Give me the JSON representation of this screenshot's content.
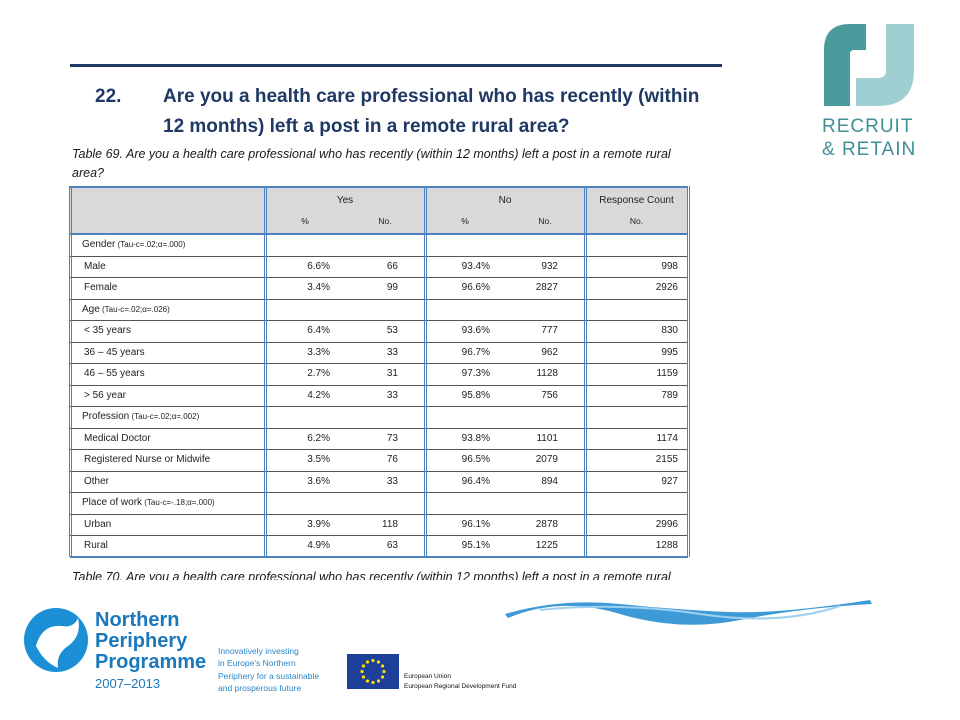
{
  "header": {
    "number": "22.",
    "question_line1": "Are you a health care professional who has recently (within",
    "question_line2": "12 months) left a post in a remote rural area?"
  },
  "logo": {
    "line1": "RECRUIT",
    "line2": "& RETAIN"
  },
  "table": {
    "caption_line1": "Table 69. Are you a health care professional who has recently (within 12 months) left a post in a remote rural",
    "caption_line2": "area?",
    "groups": [
      "Yes",
      "No",
      "Response Count"
    ],
    "subheaders": [
      "%",
      "No.",
      "%",
      "No.",
      "No."
    ],
    "sections": [
      {
        "label": "Gender",
        "stat": "(Tau-c=.02;α=.000)",
        "rows": [
          [
            "Male",
            "6.6%",
            "66",
            "93.4%",
            "932",
            "998"
          ],
          [
            "Female",
            "3.4%",
            "99",
            "96.6%",
            "2827",
            "2926"
          ]
        ]
      },
      {
        "label": "Age",
        "stat": "(Tau-c=.02;α=.026)",
        "rows": [
          [
            "< 35 years",
            "6.4%",
            "53",
            "93.6%",
            "777",
            "830"
          ],
          [
            "36 – 45 years",
            "3.3%",
            "33",
            "96.7%",
            "962",
            "995"
          ],
          [
            "46 – 55 years",
            "2.7%",
            "31",
            "97.3%",
            "1128",
            "1159"
          ],
          [
            "> 56 year",
            "4.2%",
            "33",
            "95.8%",
            "756",
            "789"
          ]
        ]
      },
      {
        "label": "Profession",
        "stat": "(Tau-c=.02;α=.002)",
        "rows": [
          [
            "Medical Doctor",
            "6.2%",
            "73",
            "93.8%",
            "1101",
            "1174"
          ],
          [
            "Registered Nurse or Midwife",
            "3.5%",
            "76",
            "96.5%",
            "2079",
            "2155"
          ],
          [
            "Other",
            "3.6%",
            "33",
            "96.4%",
            "894",
            "927"
          ]
        ]
      },
      {
        "label": "Place of work",
        "stat": "(Tau-c=-.18;α=.000)",
        "rows": [
          [
            "Urban",
            "3.9%",
            "118",
            "96.1%",
            "2878",
            "2996"
          ],
          [
            "Rural",
            "4.9%",
            "63",
            "95.1%",
            "1225",
            "1288"
          ]
        ]
      }
    ]
  },
  "next_caption": "Table 70. Are you a health care professional who has recently (within 12 months) left a post in a remote rural",
  "footer": {
    "programme": [
      "Northern",
      "Periphery",
      "Programme"
    ],
    "years": "2007–2013",
    "tagline": [
      "Innovatively investing",
      "in Europe's Northern",
      "Periphery for a sustainable",
      "and prosperous future"
    ],
    "eu": [
      "European Union",
      "European Regional Development Fund"
    ]
  }
}
